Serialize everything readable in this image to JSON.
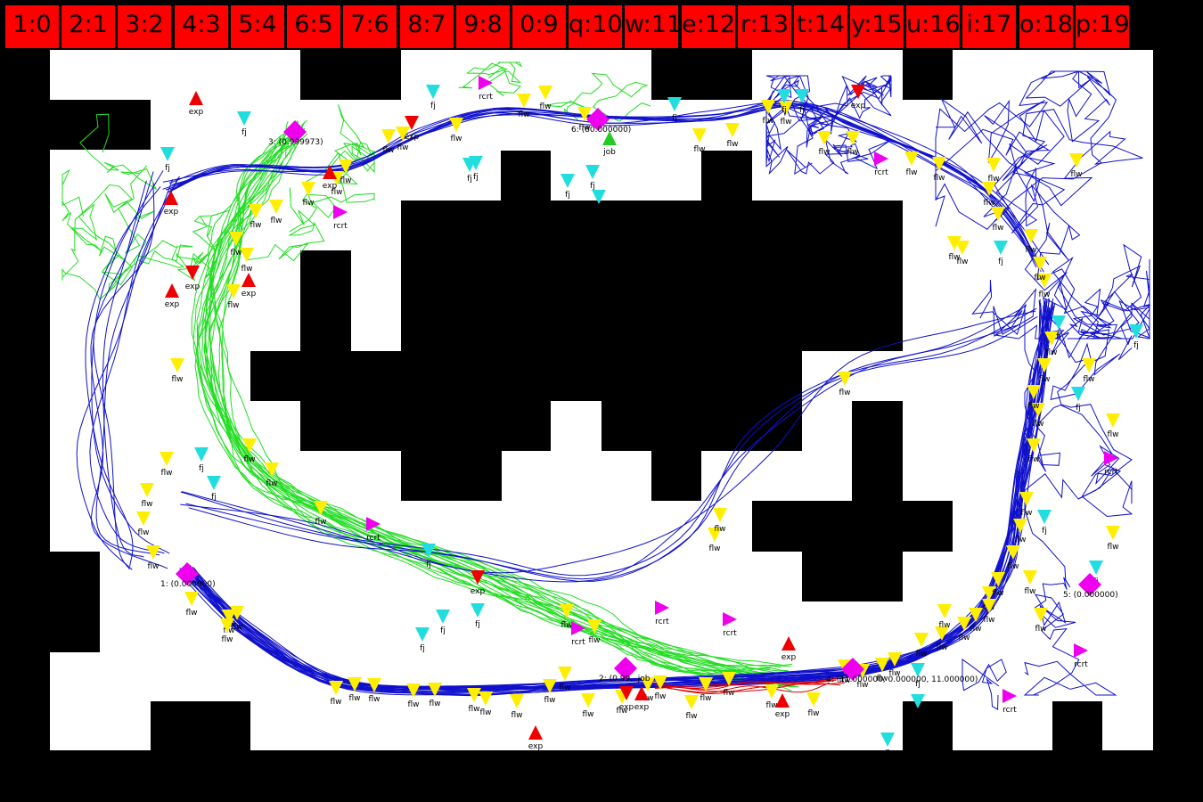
{
  "hotkeys": [
    {
      "label": "1:0"
    },
    {
      "label": "2:1"
    },
    {
      "label": "3:2"
    },
    {
      "label": "4:3"
    },
    {
      "label": "5:4"
    },
    {
      "label": "6:5"
    },
    {
      "label": "7:6"
    },
    {
      "label": "8:7"
    },
    {
      "label": "9:8"
    },
    {
      "label": "0:9"
    },
    {
      "label": "q:10"
    },
    {
      "label": "w:11"
    },
    {
      "label": "e:12"
    },
    {
      "label": "r:13"
    },
    {
      "label": "t:14"
    },
    {
      "label": "y:15"
    },
    {
      "label": "u:16"
    },
    {
      "label": "i:17"
    },
    {
      "label": "o:18"
    },
    {
      "label": "p:19"
    }
  ],
  "colors": {
    "background": "#000000",
    "floor": "#ffffff",
    "hotkey": "#ff0000",
    "trail_green": "#22dd22",
    "trail_blue": "#1010cc",
    "trail_red": "#dd0000",
    "flw": "#ffee00",
    "fj": "#22dddd",
    "exp": "#ee0000",
    "rcrt": "#ee00ee",
    "job": "#22cc22",
    "site": "#ee00ee"
  },
  "sites": [
    {
      "id": "site-1",
      "label": "1: (0.000000)"
    },
    {
      "id": "site-2",
      "label": "2: (0.99...job"
    },
    {
      "id": "site-3",
      "label": "3: (0.999973)"
    },
    {
      "id": "site-4",
      "label": "4: (11.000000, 0.000000, 11.000000)"
    },
    {
      "id": "site-5",
      "label": "5: (0.000000)"
    },
    {
      "id": "site-6",
      "label": "6: (80.000000)"
    }
  ],
  "marker_labels": {
    "flw": "flw",
    "fj": "fj",
    "exp": "exp",
    "rcrt": "rcrt",
    "job": "job"
  }
}
